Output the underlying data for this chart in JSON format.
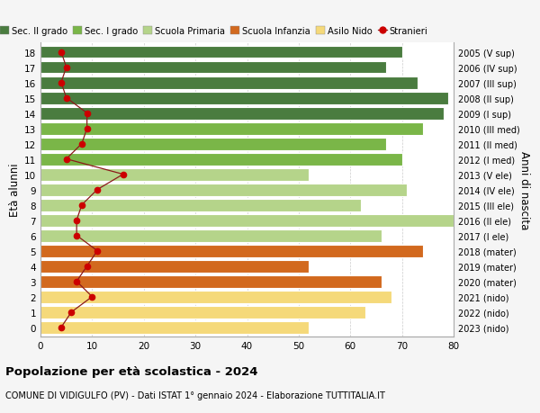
{
  "ages": [
    18,
    17,
    16,
    15,
    14,
    13,
    12,
    11,
    10,
    9,
    8,
    7,
    6,
    5,
    4,
    3,
    2,
    1,
    0
  ],
  "right_labels": [
    "2005 (V sup)",
    "2006 (IV sup)",
    "2007 (III sup)",
    "2008 (II sup)",
    "2009 (I sup)",
    "2010 (III med)",
    "2011 (II med)",
    "2012 (I med)",
    "2013 (V ele)",
    "2014 (IV ele)",
    "2015 (III ele)",
    "2016 (II ele)",
    "2017 (I ele)",
    "2018 (mater)",
    "2019 (mater)",
    "2020 (mater)",
    "2021 (nido)",
    "2022 (nido)",
    "2023 (nido)"
  ],
  "bar_values": [
    70,
    67,
    73,
    79,
    78,
    74,
    67,
    70,
    52,
    71,
    62,
    80,
    66,
    74,
    52,
    66,
    68,
    63,
    52
  ],
  "bar_colors": [
    "#4a7c3f",
    "#4a7c3f",
    "#4a7c3f",
    "#4a7c3f",
    "#4a7c3f",
    "#7ab648",
    "#7ab648",
    "#7ab648",
    "#b5d48a",
    "#b5d48a",
    "#b5d48a",
    "#b5d48a",
    "#b5d48a",
    "#d2691e",
    "#d2691e",
    "#d2691e",
    "#f5d97a",
    "#f5d97a",
    "#f5d97a"
  ],
  "stranieri_values": [
    4,
    5,
    4,
    5,
    9,
    9,
    8,
    5,
    16,
    11,
    8,
    7,
    7,
    11,
    9,
    7,
    10,
    6,
    4
  ],
  "legend_labels": [
    "Sec. II grado",
    "Sec. I grado",
    "Scuola Primaria",
    "Scuola Infanzia",
    "Asilo Nido",
    "Stranieri"
  ],
  "legend_colors": [
    "#4a7c3f",
    "#7ab648",
    "#b5d48a",
    "#d2691e",
    "#f5d97a",
    "#cc0000"
  ],
  "title": "Popolazione per età scolastica - 2024",
  "subtitle": "COMUNE DI VIDIGULFO (PV) - Dati ISTAT 1° gennaio 2024 - Elaborazione TUTTITALIA.IT",
  "ylabel": "Età alunni",
  "ylabel_right": "Anni di nascita",
  "xlim": [
    0,
    80
  ],
  "xticks": [
    0,
    10,
    20,
    30,
    40,
    50,
    60,
    70,
    80
  ],
  "bg_color": "#f5f5f5",
  "plot_bg_color": "#ffffff",
  "grid_color": "#cccccc"
}
